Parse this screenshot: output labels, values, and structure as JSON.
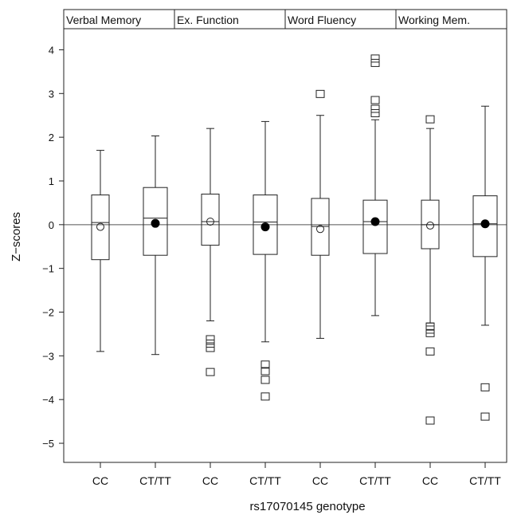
{
  "chart_data": {
    "type": "boxplot",
    "ylabel": "Z−scores",
    "xlabel": "rs17070145 genotype",
    "ylim": [
      -5.2,
      4.3
    ],
    "yticks": [
      -5,
      -4,
      -3,
      -2,
      -1,
      0,
      1,
      2,
      3,
      4
    ],
    "reference_line": 0,
    "panels": [
      {
        "title": "Verbal Memory",
        "groups": [
          {
            "label": "CC",
            "min": -2.9,
            "q1": -0.8,
            "median": 0.05,
            "q3": 0.68,
            "max": 1.7,
            "mean": -0.05,
            "mean_marker": "open",
            "outliers": []
          },
          {
            "label": "CT/TT",
            "min": -2.97,
            "q1": -0.7,
            "median": 0.15,
            "q3": 0.85,
            "max": 2.03,
            "mean": 0.03,
            "mean_marker": "filled",
            "outliers": []
          }
        ]
      },
      {
        "title": "Ex. Function",
        "groups": [
          {
            "label": "CC",
            "min": -2.2,
            "q1": -0.47,
            "median": 0.07,
            "q3": 0.7,
            "max": 2.2,
            "mean": 0.07,
            "mean_marker": "open",
            "outliers": [
              -2.62,
              -2.72,
              -2.82,
              -3.37
            ]
          },
          {
            "label": "CT/TT",
            "min": -2.68,
            "q1": -0.68,
            "median": 0.06,
            "q3": 0.68,
            "max": 2.36,
            "mean": -0.05,
            "mean_marker": "filled",
            "outliers": [
              -3.2,
              -3.35,
              -3.55,
              -3.93
            ]
          }
        ]
      },
      {
        "title": "Word Fluency",
        "groups": [
          {
            "label": "CC",
            "min": -2.6,
            "q1": -0.7,
            "median": -0.04,
            "q3": 0.6,
            "max": 2.5,
            "mean": -0.1,
            "mean_marker": "open",
            "outliers": [
              2.99
            ]
          },
          {
            "label": "CT/TT",
            "min": -2.08,
            "q1": -0.66,
            "median": 0.07,
            "q3": 0.56,
            "max": 2.4,
            "mean": 0.07,
            "mean_marker": "filled",
            "outliers": [
              2.55,
              2.65,
              2.85,
              3.7,
              3.8
            ]
          }
        ]
      },
      {
        "title": "Working Mem.",
        "groups": [
          {
            "label": "CC",
            "min": -2.25,
            "q1": -0.55,
            "median": 0.0,
            "q3": 0.56,
            "max": 2.2,
            "mean": -0.02,
            "mean_marker": "open",
            "outliers": [
              2.41,
              -2.33,
              -2.4,
              -2.48,
              -2.9,
              -4.48
            ]
          },
          {
            "label": "CT/TT",
            "min": -2.3,
            "q1": -0.73,
            "median": 0.02,
            "q3": 0.66,
            "max": 2.71,
            "mean": 0.02,
            "mean_marker": "filled",
            "outliers": [
              -3.72,
              -4.39
            ]
          }
        ]
      }
    ]
  }
}
